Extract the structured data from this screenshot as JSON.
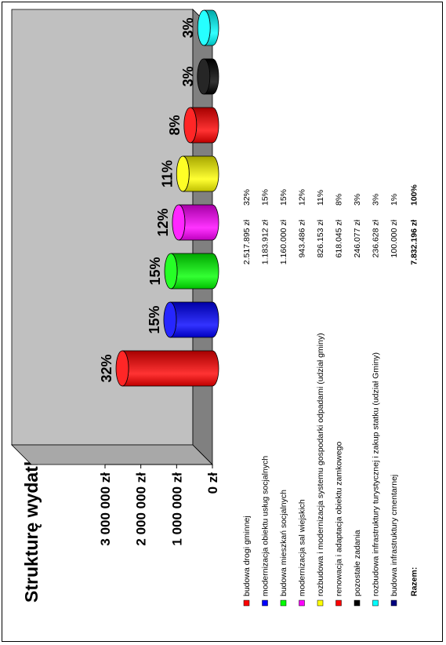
{
  "chart_data": {
    "type": "bar",
    "title": "Strukturę wydatków na inwestycje przedstawia poniższy diagram",
    "y_ticks": [
      "3 000 000 zł",
      "2 000 000 zł",
      "1 000 000 zł",
      "0 zł"
    ],
    "ylim": [
      0,
      3000000
    ],
    "categories": [
      "budowa drogi gminnej",
      "modernizacja obiektu usług socjalnych",
      "budowa mieszkań socjalnych",
      "modernizacja sal wiejskich",
      "rozbudowa i modernizacja systemu gospodarki odpadami (udział gminy)",
      "renowacja i adaptacja obiektu zamkowego",
      "pozostałe zadania",
      "rozbudowa infrastruktury turystycznej i zakup statku (udział Gminy)",
      "budowa infrastruktury cmentarnej"
    ],
    "values": [
      2517895,
      1183912,
      1160000,
      943486,
      826153,
      618045,
      246077,
      236628,
      100000
    ],
    "value_labels": [
      "2.517.895 zł",
      "1.183.912 zł",
      "1.160.000 zł",
      "943.486 zł",
      "826.153 zł",
      "618.045 zł",
      "246.077 zł",
      "236.628 zł",
      "100.000 zł"
    ],
    "percent_labels": [
      "32%",
      "15%",
      "15%",
      "12%",
      "11%",
      "8%",
      "3%",
      "3%",
      "1%"
    ],
    "colors": [
      "#ff0000",
      "#0000ff",
      "#00ff00",
      "#ff00ff",
      "#ffff00",
      "#ff0000",
      "#000000",
      "#00ffff",
      "#000080"
    ],
    "total_label": "Razem:",
    "total_value": "7.832.196 zł",
    "total_percent": "100%",
    "grid": false,
    "orientation": "rotated 90 degrees counter-clockwise"
  }
}
